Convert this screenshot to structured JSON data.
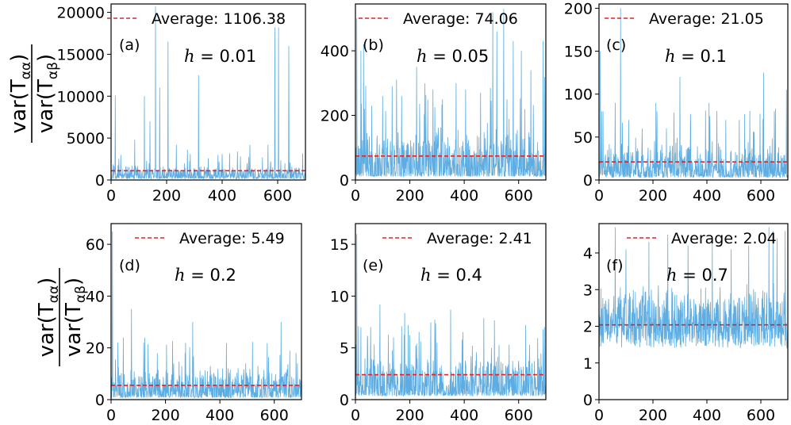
{
  "figure": {
    "ylabel_numerator": "var(T",
    "ylabel_numerator_sub": "αα",
    "ylabel_denominator": "var(T",
    "ylabel_denominator_sub": "αβ",
    "ylabel_close": ")",
    "legend_label_prefix": "Average: ",
    "h_symbol": "h",
    "series_color": "#5dade2",
    "average_color": "#d62728"
  },
  "chart_data": [
    {
      "type": "line",
      "panel": "(a)",
      "h_label": "= 0.01",
      "average": 1106.38,
      "average_text": "1106.38",
      "xlim": [
        0,
        700
      ],
      "ylim": [
        0,
        21000
      ],
      "xticks": [
        0,
        200,
        400,
        600
      ],
      "yticks": [
        0,
        5000,
        10000,
        15000,
        20000
      ],
      "peaks": [
        [
          15,
          10100
        ],
        [
          35,
          3000
        ],
        [
          85,
          4800
        ],
        [
          120,
          10000
        ],
        [
          140,
          7000
        ],
        [
          160,
          20700
        ],
        [
          175,
          11000
        ],
        [
          205,
          16500
        ],
        [
          235,
          4200
        ],
        [
          275,
          3600
        ],
        [
          315,
          12500
        ],
        [
          350,
          2600
        ],
        [
          400,
          3100
        ],
        [
          455,
          3400
        ],
        [
          500,
          4200
        ],
        [
          545,
          2700
        ],
        [
          565,
          4200
        ],
        [
          590,
          18200
        ],
        [
          603,
          18200
        ],
        [
          640,
          16000
        ],
        [
          690,
          3200
        ]
      ],
      "base_max": 1600,
      "n_points": 700,
      "seed": 11
    },
    {
      "type": "line",
      "panel": "(b)",
      "h_label": "= 0.05",
      "average": 74.06,
      "average_text": "74.06",
      "xlim": [
        0,
        700
      ],
      "ylim": [
        0,
        545
      ],
      "xticks": [
        0,
        200,
        400,
        600
      ],
      "yticks": [
        0,
        200,
        400
      ],
      "peaks": [
        [
          5,
          500
        ],
        [
          20,
          400
        ],
        [
          30,
          420
        ],
        [
          60,
          230
        ],
        [
          100,
          260
        ],
        [
          135,
          290
        ],
        [
          170,
          260
        ],
        [
          225,
          350
        ],
        [
          285,
          280
        ],
        [
          320,
          250
        ],
        [
          370,
          300
        ],
        [
          405,
          280
        ],
        [
          460,
          270
        ],
        [
          505,
          520
        ],
        [
          520,
          460
        ],
        [
          545,
          530
        ],
        [
          580,
          430
        ],
        [
          610,
          400
        ],
        [
          645,
          340
        ],
        [
          690,
          430
        ]
      ],
      "base_max": 160,
      "n_points": 700,
      "seed": 23
    },
    {
      "type": "line",
      "panel": "(c)",
      "h_label": "= 0.1",
      "average": 21.05,
      "average_text": "21.05",
      "xlim": [
        0,
        700
      ],
      "ylim": [
        0,
        205
      ],
      "xticks": [
        0,
        200,
        400,
        600
      ],
      "yticks": [
        0,
        50,
        100,
        150,
        200
      ],
      "peaks": [
        [
          5,
          150
        ],
        [
          15,
          80
        ],
        [
          60,
          90
        ],
        [
          80,
          200
        ],
        [
          110,
          70
        ],
        [
          160,
          60
        ],
        [
          215,
          80
        ],
        [
          250,
          60
        ],
        [
          300,
          120
        ],
        [
          340,
          65
        ],
        [
          420,
          45
        ],
        [
          470,
          70
        ],
        [
          520,
          70
        ],
        [
          575,
          55
        ],
        [
          610,
          125
        ],
        [
          650,
          80
        ],
        [
          695,
          105
        ]
      ],
      "base_max": 45,
      "n_points": 700,
      "seed": 37
    },
    {
      "type": "line",
      "panel": "(d)",
      "h_label": "= 0.2",
      "average": 5.49,
      "average_text": "5.49",
      "xlim": [
        0,
        700
      ],
      "ylim": [
        0,
        68
      ],
      "xticks": [
        0,
        200,
        400,
        600
      ],
      "yticks": [
        0,
        20,
        40,
        60
      ],
      "peaks": [
        [
          5,
          65
        ],
        [
          25,
          22
        ],
        [
          45,
          24
        ],
        [
          75,
          35
        ],
        [
          120,
          22
        ],
        [
          170,
          18
        ],
        [
          230,
          14
        ],
        [
          300,
          30
        ],
        [
          365,
          13
        ],
        [
          430,
          12
        ],
        [
          495,
          14
        ],
        [
          540,
          13
        ],
        [
          625,
          30
        ],
        [
          680,
          18
        ]
      ],
      "base_max": 12,
      "n_points": 700,
      "seed": 41
    },
    {
      "type": "line",
      "panel": "(e)",
      "h_label": "= 0.4",
      "average": 2.41,
      "average_text": "2.41",
      "xlim": [
        0,
        700
      ],
      "ylim": [
        0,
        17
      ],
      "xticks": [
        0,
        200,
        400,
        600
      ],
      "yticks": [
        0,
        5,
        10,
        15
      ],
      "peaks": [
        [
          5,
          16
        ],
        [
          20,
          7
        ],
        [
          45,
          6
        ],
        [
          90,
          9.2
        ],
        [
          140,
          6
        ],
        [
          200,
          6.2
        ],
        [
          240,
          5.6
        ],
        [
          300,
          5.5
        ],
        [
          350,
          8.7
        ],
        [
          430,
          5.2
        ],
        [
          500,
          5.0
        ],
        [
          565,
          5.3
        ],
        [
          640,
          5.3
        ],
        [
          690,
          6.8
        ]
      ],
      "base_max": 4.2,
      "n_points": 700,
      "seed": 53
    },
    {
      "type": "line",
      "panel": "(f)",
      "h_label": "= 0.7",
      "average": 2.04,
      "average_text": "2.04",
      "xlim": [
        0,
        700
      ],
      "ylim": [
        0,
        4.8
      ],
      "xticks": [
        0,
        200,
        400,
        600
      ],
      "yticks": [
        0,
        1,
        2,
        3,
        4
      ],
      "peaks": [
        [
          60,
          4.7
        ],
        [
          100,
          4.1
        ],
        [
          185,
          4.3
        ],
        [
          255,
          4.5
        ],
        [
          330,
          4.2
        ],
        [
          420,
          4.3
        ],
        [
          490,
          4.1
        ],
        [
          555,
          4.2
        ],
        [
          630,
          4.7
        ],
        [
          645,
          4.6
        ],
        [
          660,
          4.4
        ],
        [
          690,
          4.6
        ]
      ],
      "base_max": 3.2,
      "base_min": 1.0,
      "n_points": 700,
      "seed": 61
    }
  ]
}
